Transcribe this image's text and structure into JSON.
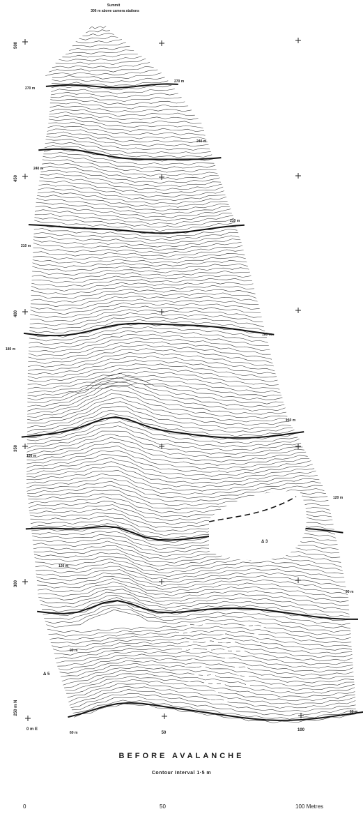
{
  "map": {
    "summit_label": "Summit",
    "summit_sub": "306 m above camera stations",
    "title": "BEFORE AVALANCHE",
    "contour_interval": "Contour Interval 1·5 m",
    "scale": {
      "start": "0",
      "mid": "50",
      "end": "100 Metres"
    },
    "axis_labels_left": [
      "500",
      "450",
      "400",
      "350",
      "300"
    ],
    "axis_label_bottom_left": "250 m N",
    "origin_label": "0 m E",
    "axis_labels_bottom": [
      "50",
      "100"
    ],
    "contour_labels": [
      "270 m",
      "270 m",
      "240 m",
      "240 m",
      "210 m",
      "210 m",
      "180 m",
      "180 m",
      "150 m",
      "150 m",
      "120 m",
      "120 m",
      "90 m",
      "90 m",
      "60 m",
      "60 m"
    ],
    "stations": [
      "Δ 3",
      "Δ 5"
    ]
  }
}
